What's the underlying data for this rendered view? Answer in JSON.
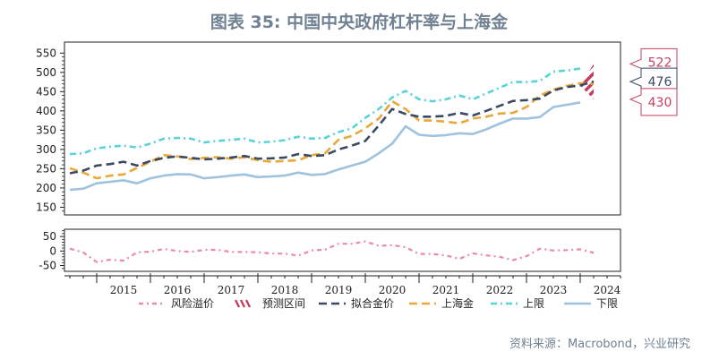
{
  "title": "图表 35: 中国中央政府杠杆率与上海金",
  "source": "资料来源：Macrobond，兴业研究",
  "colors": {
    "risk_premium": "#e98aa6",
    "forecast": "#c63e5c",
    "fitted": "#3b4a63",
    "shanghai_gold": "#e8a93a",
    "upper": "#5ad3d8",
    "lower": "#9fc3de",
    "title": "#6f8192"
  },
  "chart_data": [
    {
      "type": "line",
      "x_unit": "year",
      "xlim": [
        2014.4,
        2024.75
      ],
      "ylim": [
        130,
        560
      ],
      "yticks": [
        150,
        200,
        250,
        300,
        350,
        400,
        450,
        500,
        550
      ],
      "xticks": [
        "2015",
        "2016",
        "2017",
        "2018",
        "2019",
        "2020",
        "2021",
        "2022",
        "2023",
        "2024"
      ],
      "series": [
        {
          "name": "上限",
          "key": "upper",
          "points": [
            [
              2014.5,
              288
            ],
            [
              2014.75,
              290
            ],
            [
              2015.0,
              303
            ],
            [
              2015.25,
              307
            ],
            [
              2015.5,
              310
            ],
            [
              2015.75,
              305
            ],
            [
              2016.0,
              315
            ],
            [
              2016.25,
              328
            ],
            [
              2016.5,
              330
            ],
            [
              2016.75,
              328
            ],
            [
              2017.0,
              318
            ],
            [
              2017.25,
              322
            ],
            [
              2017.5,
              325
            ],
            [
              2017.75,
              328
            ],
            [
              2018.0,
              318
            ],
            [
              2018.25,
              320
            ],
            [
              2018.5,
              324
            ],
            [
              2018.75,
              333
            ],
            [
              2019.0,
              328
            ],
            [
              2019.25,
              330
            ],
            [
              2019.5,
              345
            ],
            [
              2019.75,
              355
            ],
            [
              2020.0,
              382
            ],
            [
              2020.25,
              405
            ],
            [
              2020.5,
              435
            ],
            [
              2020.75,
              452
            ],
            [
              2021.0,
              430
            ],
            [
              2021.25,
              425
            ],
            [
              2021.5,
              430
            ],
            [
              2021.75,
              440
            ],
            [
              2022.0,
              430
            ],
            [
              2022.25,
              445
            ],
            [
              2022.5,
              460
            ],
            [
              2022.75,
              475
            ],
            [
              2023.0,
              475
            ],
            [
              2023.25,
              478
            ],
            [
              2023.5,
              502
            ],
            [
              2023.75,
              505
            ],
            [
              2024.0,
              510
            ]
          ]
        },
        {
          "name": "上海金",
          "key": "shanghai_gold",
          "points": [
            [
              2014.5,
              251
            ],
            [
              2014.75,
              240
            ],
            [
              2015.0,
              225
            ],
            [
              2015.25,
              232
            ],
            [
              2015.5,
              235
            ],
            [
              2015.75,
              252
            ],
            [
              2016.0,
              268
            ],
            [
              2016.25,
              285
            ],
            [
              2016.5,
              282
            ],
            [
              2016.75,
              275
            ],
            [
              2017.0,
              278
            ],
            [
              2017.25,
              280
            ],
            [
              2017.5,
              276
            ],
            [
              2017.75,
              280
            ],
            [
              2018.0,
              272
            ],
            [
              2018.25,
              268
            ],
            [
              2018.5,
              270
            ],
            [
              2018.75,
              272
            ],
            [
              2019.0,
              285
            ],
            [
              2019.25,
              290
            ],
            [
              2019.5,
              325
            ],
            [
              2019.75,
              335
            ],
            [
              2020.0,
              355
            ],
            [
              2020.25,
              380
            ],
            [
              2020.5,
              425
            ],
            [
              2020.75,
              405
            ],
            [
              2021.0,
              375
            ],
            [
              2021.25,
              375
            ],
            [
              2021.5,
              372
            ],
            [
              2021.75,
              368
            ],
            [
              2022.0,
              380
            ],
            [
              2022.25,
              385
            ],
            [
              2022.5,
              393
            ],
            [
              2022.75,
              395
            ],
            [
              2023.0,
              410
            ],
            [
              2023.25,
              440
            ],
            [
              2023.5,
              455
            ],
            [
              2023.75,
              465
            ],
            [
              2024.0,
              472
            ],
            [
              2024.25,
              470
            ]
          ]
        },
        {
          "name": "拟合金价",
          "key": "fitted",
          "points": [
            [
              2014.5,
              238
            ],
            [
              2014.75,
              245
            ],
            [
              2015.0,
              258
            ],
            [
              2015.25,
              262
            ],
            [
              2015.5,
              268
            ],
            [
              2015.75,
              258
            ],
            [
              2016.0,
              270
            ],
            [
              2016.25,
              278
            ],
            [
              2016.5,
              282
            ],
            [
              2016.75,
              278
            ],
            [
              2017.0,
              274
            ],
            [
              2017.25,
              276
            ],
            [
              2017.5,
              279
            ],
            [
              2017.75,
              283
            ],
            [
              2018.0,
              276
            ],
            [
              2018.25,
              277
            ],
            [
              2018.5,
              279
            ],
            [
              2018.75,
              288
            ],
            [
              2019.0,
              283
            ],
            [
              2019.25,
              285
            ],
            [
              2019.5,
              300
            ],
            [
              2019.75,
              310
            ],
            [
              2020.0,
              322
            ],
            [
              2020.25,
              362
            ],
            [
              2020.5,
              405
            ],
            [
              2020.75,
              392
            ],
            [
              2021.0,
              385
            ],
            [
              2021.25,
              385
            ],
            [
              2021.5,
              387
            ],
            [
              2021.75,
              395
            ],
            [
              2022.0,
              388
            ],
            [
              2022.25,
              400
            ],
            [
              2022.5,
              413
            ],
            [
              2022.75,
              426
            ],
            [
              2023.0,
              428
            ],
            [
              2023.25,
              432
            ],
            [
              2023.5,
              453
            ],
            [
              2023.75,
              462
            ],
            [
              2024.0,
              466
            ],
            [
              2024.25,
              476
            ]
          ]
        },
        {
          "name": "下限",
          "key": "lower",
          "points": [
            [
              2014.5,
              195
            ],
            [
              2014.75,
              198
            ],
            [
              2015.0,
              212
            ],
            [
              2015.25,
              216
            ],
            [
              2015.5,
              220
            ],
            [
              2015.75,
              212
            ],
            [
              2016.0,
              225
            ],
            [
              2016.25,
              232
            ],
            [
              2016.5,
              236
            ],
            [
              2016.75,
              235
            ],
            [
              2017.0,
              225
            ],
            [
              2017.25,
              228
            ],
            [
              2017.5,
              232
            ],
            [
              2017.75,
              235
            ],
            [
              2018.0,
              228
            ],
            [
              2018.25,
              230
            ],
            [
              2018.5,
              232
            ],
            [
              2018.75,
              240
            ],
            [
              2019.0,
              234
            ],
            [
              2019.25,
              236
            ],
            [
              2019.5,
              248
            ],
            [
              2019.75,
              258
            ],
            [
              2020.0,
              268
            ],
            [
              2020.25,
              290
            ],
            [
              2020.5,
              315
            ],
            [
              2020.75,
              360
            ],
            [
              2021.0,
              338
            ],
            [
              2021.25,
              335
            ],
            [
              2021.5,
              337
            ],
            [
              2021.75,
              342
            ],
            [
              2022.0,
              340
            ],
            [
              2022.25,
              352
            ],
            [
              2022.5,
              367
            ],
            [
              2022.75,
              380
            ],
            [
              2023.0,
              380
            ],
            [
              2023.25,
              384
            ],
            [
              2023.5,
              410
            ],
            [
              2023.75,
              416
            ],
            [
              2024.0,
              422
            ]
          ]
        }
      ],
      "forecast_band": {
        "x": [
          2024.0,
          2024.25
        ],
        "upper": 522,
        "lower": 430
      },
      "callouts": [
        {
          "value": 522,
          "label": "522",
          "color": "#c63e5c"
        },
        {
          "value": 476,
          "label": "476",
          "color": "#3b4a63"
        },
        {
          "value": 430,
          "label": "430",
          "color": "#c63e5c"
        }
      ]
    },
    {
      "type": "line",
      "ylim": [
        -70,
        75
      ],
      "yticks": [
        -50,
        0,
        50
      ],
      "series": [
        {
          "name": "风险溢价",
          "key": "risk_premium",
          "points": [
            [
              2014.5,
              8
            ],
            [
              2014.75,
              -5
            ],
            [
              2015.0,
              -38
            ],
            [
              2015.25,
              -30
            ],
            [
              2015.5,
              -33
            ],
            [
              2015.75,
              -5
            ],
            [
              2016.0,
              -2
            ],
            [
              2016.25,
              7
            ],
            [
              2016.5,
              0
            ],
            [
              2016.75,
              -3
            ],
            [
              2017.0,
              4
            ],
            [
              2017.25,
              4
            ],
            [
              2017.5,
              -3
            ],
            [
              2017.75,
              -3
            ],
            [
              2018.0,
              -4
            ],
            [
              2018.25,
              -9
            ],
            [
              2018.5,
              -9
            ],
            [
              2018.75,
              -16
            ],
            [
              2019.0,
              2
            ],
            [
              2019.25,
              5
            ],
            [
              2019.5,
              25
            ],
            [
              2019.75,
              25
            ],
            [
              2020.0,
              33
            ],
            [
              2020.25,
              18
            ],
            [
              2020.5,
              20
            ],
            [
              2020.75,
              13
            ],
            [
              2021.0,
              -10
            ],
            [
              2021.25,
              -10
            ],
            [
              2021.5,
              -15
            ],
            [
              2021.75,
              -27
            ],
            [
              2022.0,
              -8
            ],
            [
              2022.25,
              -15
            ],
            [
              2022.5,
              -20
            ],
            [
              2022.75,
              -31
            ],
            [
              2023.0,
              -18
            ],
            [
              2023.25,
              8
            ],
            [
              2023.5,
              2
            ],
            [
              2023.75,
              3
            ],
            [
              2024.0,
              6
            ],
            [
              2024.25,
              -6
            ]
          ]
        }
      ]
    }
  ],
  "legend": [
    {
      "label": "风险溢价",
      "key": "risk_premium"
    },
    {
      "label": "预测区间",
      "key": "forecast"
    },
    {
      "label": "拟合金价",
      "key": "fitted"
    },
    {
      "label": "上海金",
      "key": "shanghai_gold"
    },
    {
      "label": "上限",
      "key": "upper"
    },
    {
      "label": "下限",
      "key": "lower"
    }
  ]
}
